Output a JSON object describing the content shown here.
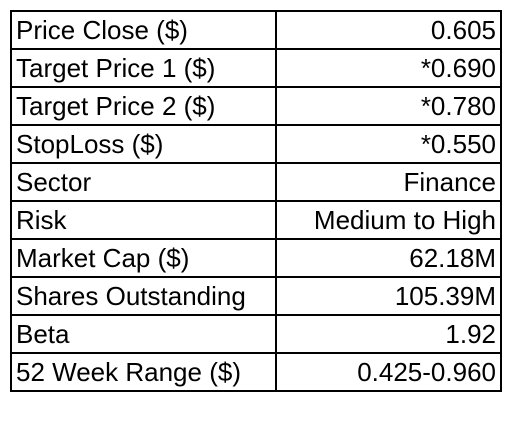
{
  "table": {
    "rows": [
      {
        "label": "Price Close ($)",
        "value": "0.605"
      },
      {
        "label": "Target Price 1 ($)",
        "value": "*0.690"
      },
      {
        "label": "Target Price 2 ($)",
        "value": "*0.780"
      },
      {
        "label": "StopLoss ($)",
        "value": "*0.550"
      },
      {
        "label": "Sector",
        "value": "Finance"
      },
      {
        "label": "Risk",
        "value": "Medium to High"
      },
      {
        "label": "Market Cap ($)",
        "value": "62.18M"
      },
      {
        "label": "Shares Outstanding",
        "value": "105.39M"
      },
      {
        "label": "Beta",
        "value": "1.92"
      },
      {
        "label": "52 Week Range ($)",
        "value": "0.425-0.960"
      }
    ]
  }
}
